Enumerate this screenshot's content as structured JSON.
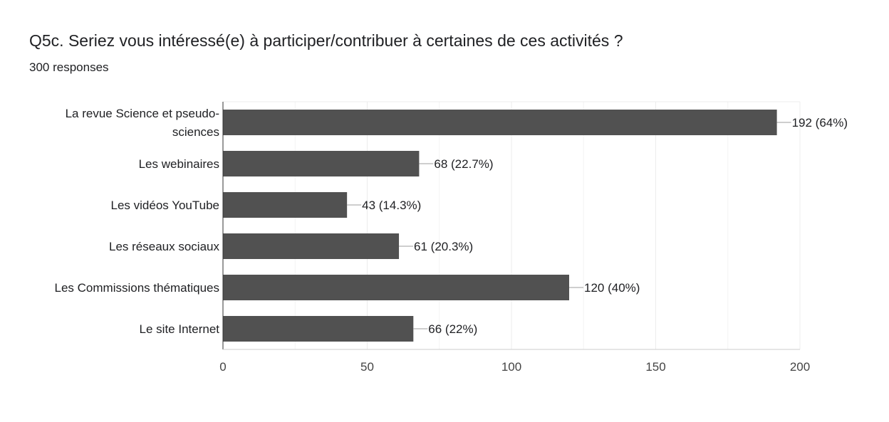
{
  "header": {
    "question": "Q5c. Seriez vous intéressé(e) à participer/contribuer à certaines de ces activités ?",
    "responses": "300 responses"
  },
  "chart_data": {
    "type": "bar",
    "orientation": "horizontal",
    "categories": [
      [
        "La revue Science et pseudo-",
        "sciences"
      ],
      [
        "Les webinaires"
      ],
      [
        "Les vidéos YouTube"
      ],
      [
        "Les réseaux sociaux"
      ],
      [
        "Les Commissions thématiques"
      ],
      [
        "Le site Internet"
      ]
    ],
    "values": [
      192,
      68,
      43,
      61,
      120,
      66
    ],
    "data_labels": [
      "192 (64%)",
      "68 (22.7%)",
      "43 (14.3%)",
      "61 (20.3%)",
      "120 (40%)",
      "66 (22%)"
    ],
    "xlim": [
      0,
      200
    ],
    "xticks": [
      0,
      50,
      100,
      150,
      200
    ],
    "bar_color": "#515151",
    "grid": true
  }
}
